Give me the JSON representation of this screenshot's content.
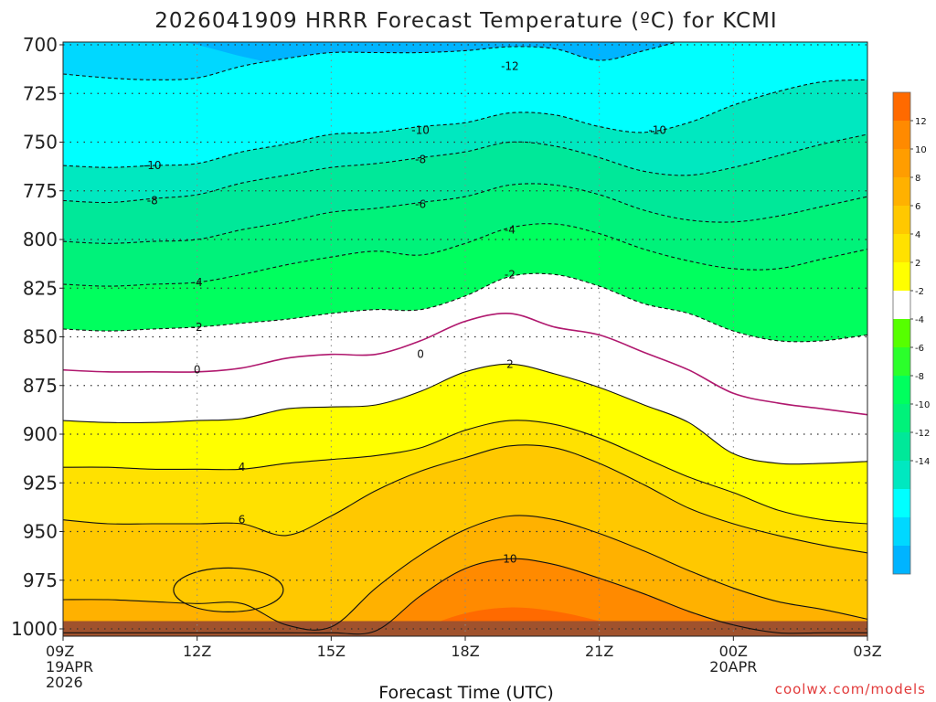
{
  "chart_data": {
    "type": "contour",
    "title": "2026041909 HRRR Forecast Temperature (ºC) for KCMI",
    "xlabel": "Forecast Time (UTC)",
    "ylabel": "Pressure (hPa)",
    "credit": "coolwx.com/models",
    "x_hours": [
      0,
      1,
      2,
      3,
      4,
      5,
      6,
      7,
      8,
      9,
      10,
      11,
      12,
      13,
      14,
      15,
      16,
      17,
      18
    ],
    "x_ticks": [
      {
        "hour": 0,
        "lines": [
          "09Z",
          "19APR",
          "2026"
        ]
      },
      {
        "hour": 3,
        "lines": [
          "12Z"
        ]
      },
      {
        "hour": 6,
        "lines": [
          "15Z"
        ]
      },
      {
        "hour": 9,
        "lines": [
          "18Z"
        ]
      },
      {
        "hour": 12,
        "lines": [
          "21Z"
        ]
      },
      {
        "hour": 15,
        "lines": [
          "00Z",
          "20APR"
        ]
      },
      {
        "hour": 18,
        "lines": [
          "03Z"
        ]
      }
    ],
    "y_ticks": [
      700,
      725,
      750,
      775,
      800,
      825,
      850,
      875,
      900,
      925,
      950,
      975,
      1000
    ],
    "ylim": [
      700,
      1000
    ],
    "surface_pressure_hpa": 996,
    "contour_levels": [
      -14,
      -12,
      -10,
      -8,
      -6,
      -4,
      -2,
      2,
      4,
      6,
      8,
      10,
      12
    ],
    "isolines": [
      {
        "level": -14,
        "pressure": [
          685,
          690,
          695,
          700,
          706,
          711,
          716,
          721,
          726,
          726,
          725,
          723,
          720,
          717,
          714,
          710,
          707,
          704,
          700
        ]
      },
      {
        "level": -12,
        "pressure": [
          715,
          717,
          718,
          717,
          711,
          707,
          704,
          704,
          704,
          703,
          701,
          702,
          708,
          703,
          697,
          692,
          688,
          686,
          688
        ]
      },
      {
        "level": -10,
        "pressure": [
          762,
          763,
          762,
          761,
          755,
          751,
          746,
          745,
          742,
          740,
          735,
          736,
          742,
          745,
          740,
          731,
          724,
          719,
          718
        ]
      },
      {
        "level": -8,
        "pressure": [
          780,
          781,
          779,
          777,
          771,
          767,
          763,
          761,
          758,
          755,
          750,
          752,
          758,
          765,
          767,
          763,
          757,
          751,
          746
        ]
      },
      {
        "level": -6,
        "pressure": [
          801,
          802,
          801,
          800,
          795,
          791,
          786,
          784,
          781,
          778,
          772,
          772,
          777,
          785,
          790,
          791,
          788,
          783,
          778
        ]
      },
      {
        "level": -4,
        "pressure": [
          823,
          824,
          823,
          822,
          818,
          813,
          809,
          806,
          808,
          802,
          794,
          792,
          797,
          805,
          811,
          815,
          815,
          810,
          805
        ]
      },
      {
        "level": -2,
        "pressure": [
          846,
          847,
          846,
          845,
          843,
          841,
          838,
          836,
          836,
          829,
          819,
          818,
          824,
          833,
          838,
          847,
          852,
          852,
          849
        ]
      },
      {
        "level": 0,
        "pressure": [
          867,
          868,
          868,
          868,
          866,
          861,
          859,
          859,
          852,
          842,
          838,
          845,
          849,
          858,
          867,
          879,
          884,
          887,
          890
        ]
      },
      {
        "level": 2,
        "pressure": [
          893,
          894,
          894,
          893,
          892,
          887,
          886,
          885,
          878,
          868,
          864,
          869,
          876,
          885,
          894,
          910,
          915,
          915,
          914
        ]
      },
      {
        "level": 4,
        "pressure": [
          917,
          917,
          918,
          918,
          918,
          915,
          913,
          911,
          907,
          898,
          893,
          895,
          902,
          912,
          922,
          930,
          939,
          944,
          946
        ]
      },
      {
        "level": 6,
        "pressure": [
          944,
          946,
          946,
          946,
          946,
          952,
          942,
          929,
          919,
          912,
          906,
          907,
          915,
          926,
          938,
          946,
          952,
          957,
          961
        ]
      },
      {
        "level": 8,
        "pressure": [
          985,
          985,
          986,
          987,
          987,
          998,
          999,
          979,
          962,
          949,
          942,
          944,
          951,
          960,
          970,
          979,
          986,
          990,
          995
        ]
      },
      {
        "level": 10,
        "pressure": [
          1002,
          1002,
          1002,
          1002,
          1002,
          1002,
          1002,
          1001,
          983,
          969,
          964,
          967,
          974,
          982,
          991,
          998,
          1002,
          1002,
          1002
        ]
      },
      {
        "level": 12,
        "pressure": [
          1010,
          1010,
          1010,
          1010,
          1010,
          1010,
          1010,
          1010,
          1000,
          992,
          989,
          991,
          996,
          1003,
          1008,
          1010,
          1010,
          1010,
          1010
        ]
      }
    ],
    "bubble_6": {
      "center_hour": 3.7,
      "center_pressure": 980,
      "label": "6"
    },
    "contour_labels": [
      {
        "text": "-12",
        "hour": 10,
        "pressure": 711
      },
      {
        "text": "-10",
        "hour": 8,
        "pressure": 744
      },
      {
        "text": "-10",
        "hour": 13.3,
        "pressure": 744
      },
      {
        "text": "-10",
        "hour": 2,
        "pressure": 762
      },
      {
        "text": "-8",
        "hour": 8,
        "pressure": 759
      },
      {
        "text": "-8",
        "hour": 2,
        "pressure": 780
      },
      {
        "text": "-6",
        "hour": 8,
        "pressure": 782
      },
      {
        "text": "-4",
        "hour": 10,
        "pressure": 795
      },
      {
        "text": "-4",
        "hour": 3,
        "pressure": 822
      },
      {
        "text": "-2",
        "hour": 10,
        "pressure": 818
      },
      {
        "text": "-2",
        "hour": 3,
        "pressure": 845
      },
      {
        "text": "0",
        "hour": 3,
        "pressure": 867
      },
      {
        "text": "0",
        "hour": 8,
        "pressure": 859
      },
      {
        "text": "2",
        "hour": 10,
        "pressure": 864
      },
      {
        "text": "4",
        "hour": 4,
        "pressure": 917
      },
      {
        "text": "6",
        "hour": 4,
        "pressure": 944
      },
      {
        "text": "10",
        "hour": 10,
        "pressure": 964
      }
    ],
    "colorbar": {
      "labels": [
        "12",
        "10",
        "8",
        "6",
        "4",
        "2",
        "-2",
        "-4",
        "-6",
        "-8",
        "-10",
        "-12",
        "-14"
      ],
      "colors": [
        "#ff6a00",
        "#ff8a00",
        "#ff9d00",
        "#ffb100",
        "#ffc800",
        "#ffe100",
        "#ffff00",
        "#ffffff",
        "#56ff00",
        "#2bff2b",
        "#00ff5e",
        "#00f27a",
        "#00e899",
        "#00e8c0",
        "#00ffff",
        "#00d8ff",
        "#00b4ff"
      ]
    },
    "fills": {
      "below_-14": "#00b4ff",
      "-14_-12": "#00d8ff",
      "-12_-10": "#00ffff",
      "-10_-8": "#00e8c0",
      "-8_-6": "#00e899",
      "-6_-4": "#00f27a",
      "-4_-2": "#00ff5e",
      "-2_0": "#ffffff",
      "0_2": "#ffffff",
      "2_4": "#ffff00",
      "4_6": "#ffe100",
      "6_8": "#ffc800",
      "8_10": "#ffb100",
      "10_12": "#ff8a00",
      "above_12": "#ff6a00",
      "ground": "#a0522d"
    }
  }
}
